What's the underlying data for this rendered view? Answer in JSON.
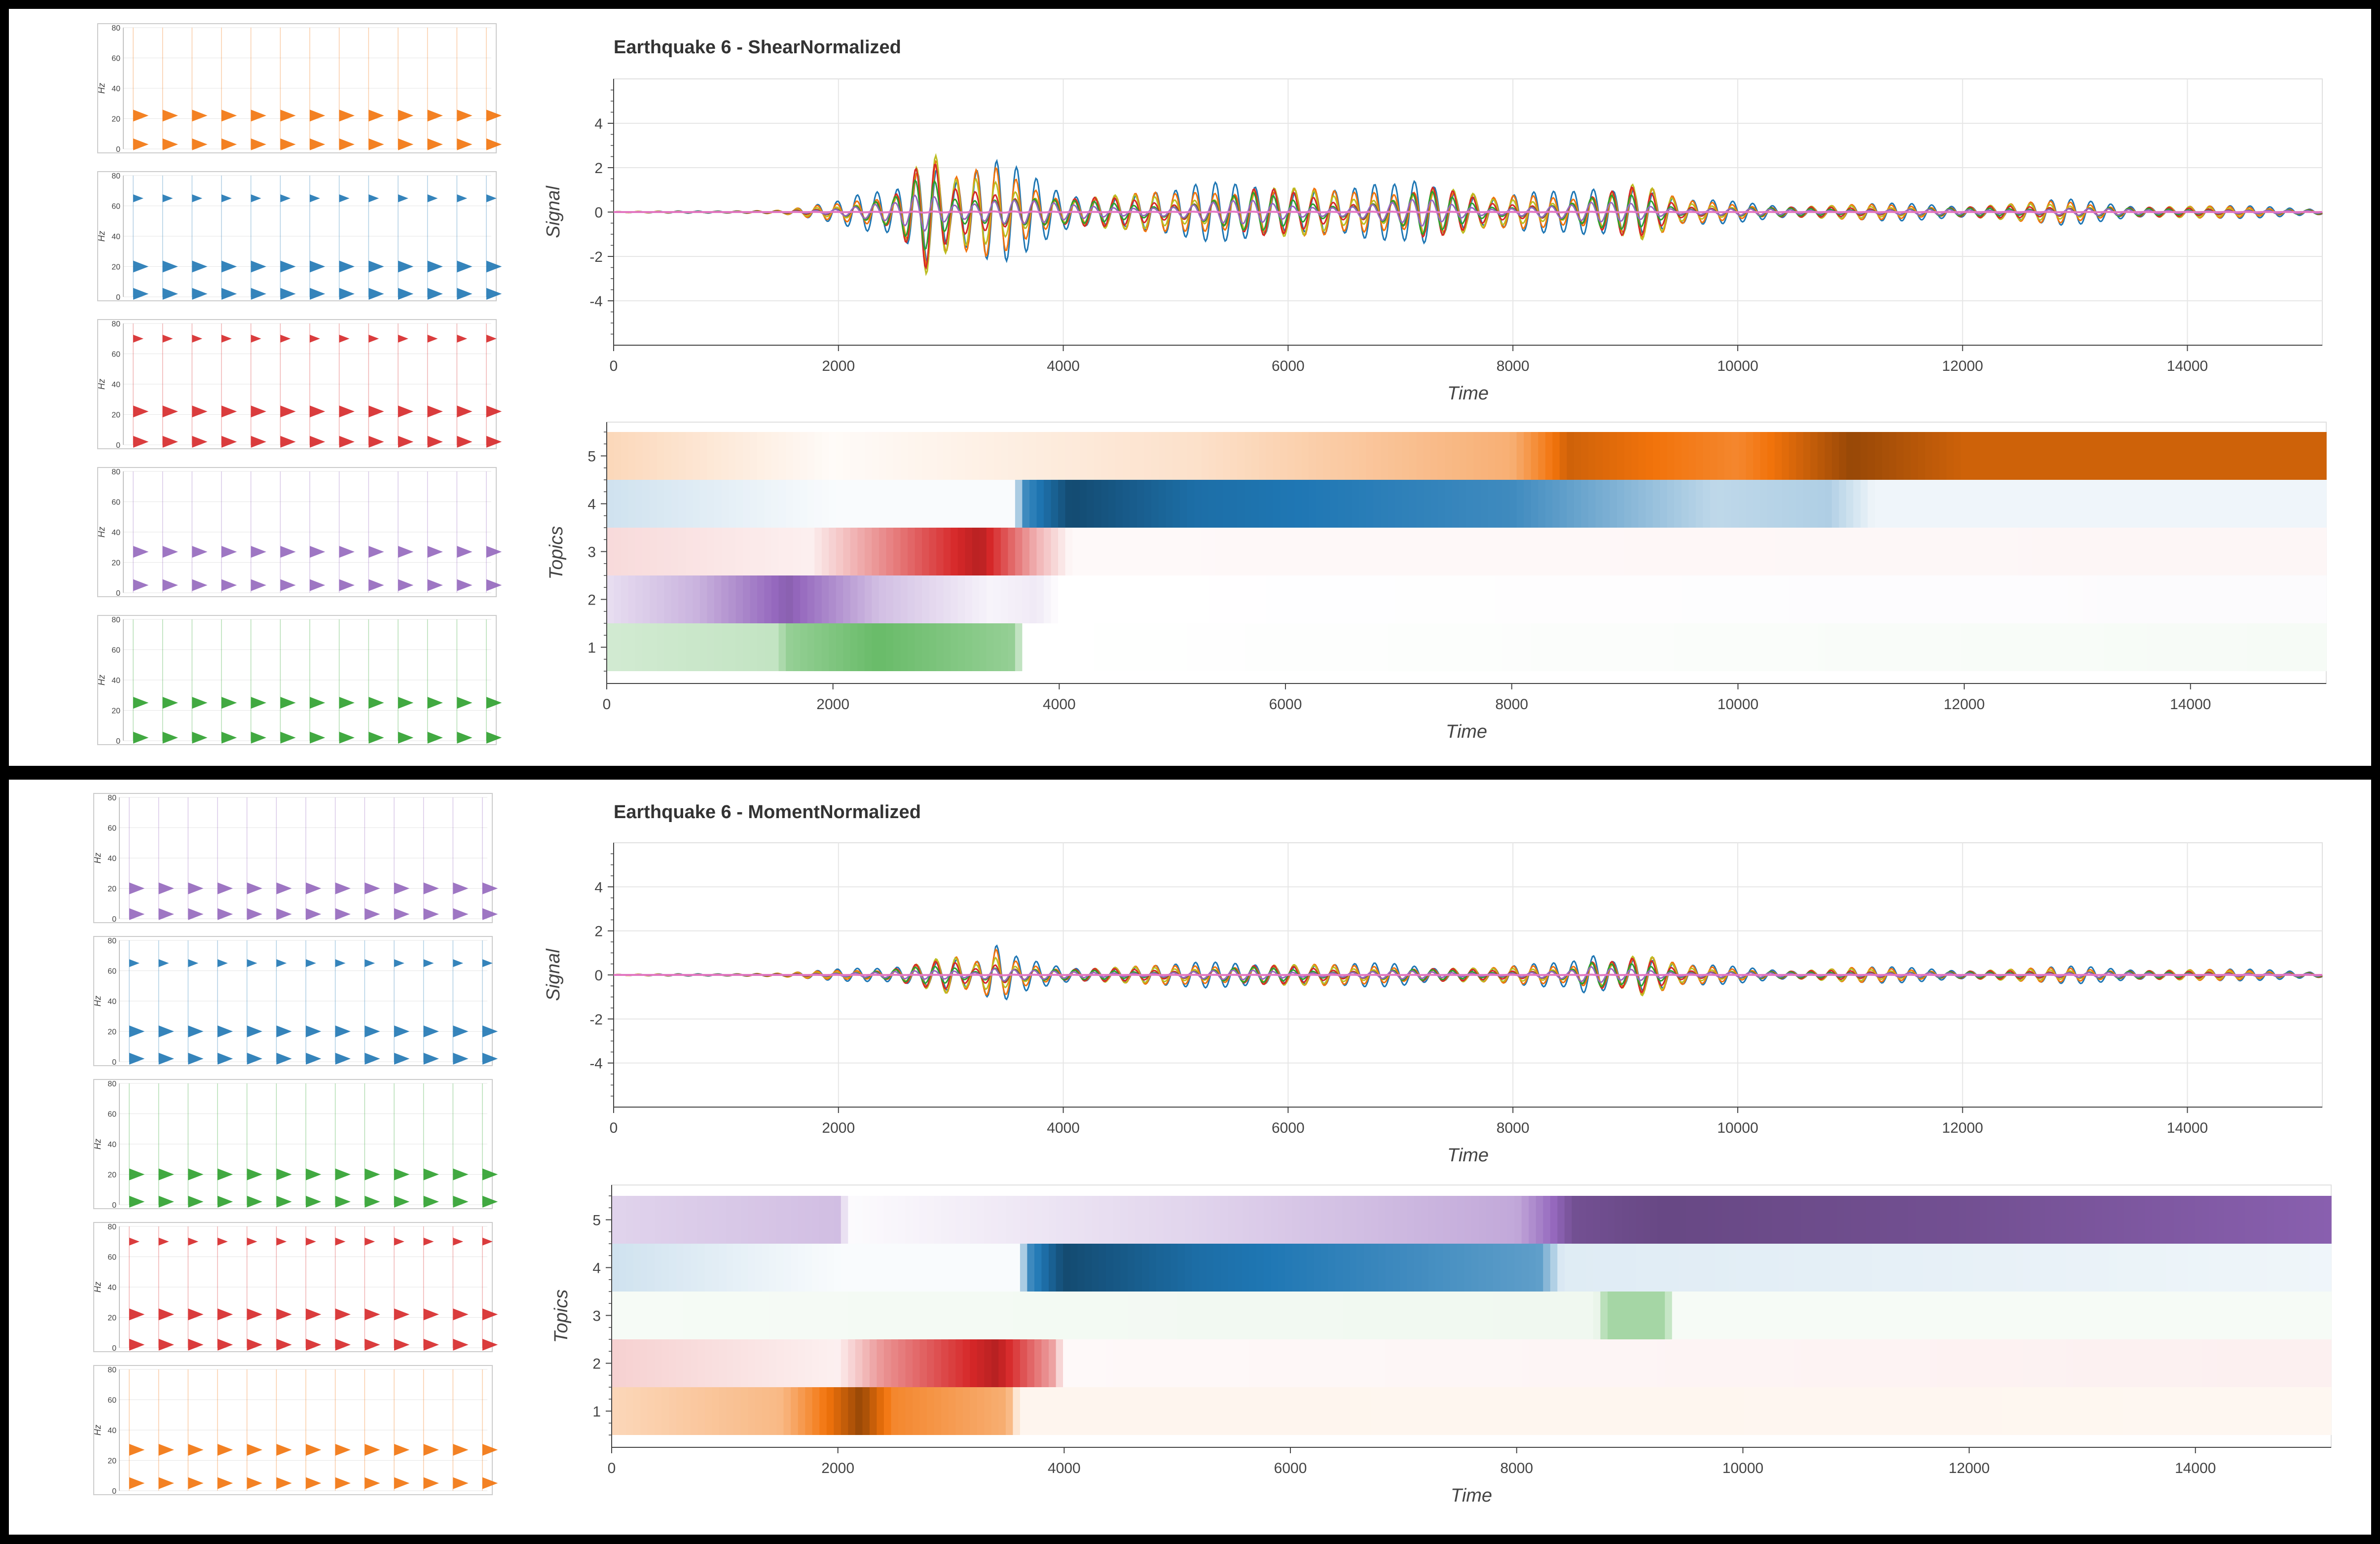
{
  "colors": {
    "orange": "#f2730b",
    "blue": "#1f77b4",
    "red": "#d62728",
    "purple": "#9467bd",
    "green": "#2ca02c",
    "pink": "#e377c2",
    "yellow": "#bcbd22",
    "grid": "#e6e6e6"
  },
  "panels": [
    {
      "title": "Earthquake 6 - ShearNormalized",
      "mini_spectra": [
        {
          "color": "orange",
          "peaks": [
            22,
            3
          ],
          "ylabel": "Hz",
          "yticks": [
            "0",
            "20",
            "40",
            "60",
            "80"
          ]
        },
        {
          "color": "blue",
          "peaks": [
            65,
            20,
            2
          ],
          "ylabel": "Hz",
          "yticks": [
            "0",
            "20",
            "40",
            "60",
            "80"
          ]
        },
        {
          "color": "red",
          "peaks": [
            70,
            22,
            2
          ],
          "ylabel": "Hz",
          "yticks": [
            "0",
            "20",
            "40",
            "60",
            "80"
          ]
        },
        {
          "color": "purple",
          "peaks": [
            27,
            5
          ],
          "ylabel": "Hz",
          "yticks": [
            "0",
            "20",
            "40",
            "60",
            "80"
          ]
        },
        {
          "color": "green",
          "peaks": [
            25,
            2
          ],
          "ylabel": "Hz",
          "yticks": [
            "0",
            "20",
            "40",
            "60",
            "80"
          ]
        }
      ],
      "topic_colors": [
        "green",
        "purple",
        "red",
        "blue",
        "orange"
      ],
      "topic_intensity": [
        [
          [
            0,
            0.15
          ],
          [
            1500,
            0.2
          ],
          [
            1600,
            0.35
          ],
          [
            2400,
            0.5
          ],
          [
            3600,
            0.35
          ],
          [
            3700,
            0
          ],
          [
            15200,
            0.03
          ]
        ],
        [
          [
            0,
            0.15
          ],
          [
            800,
            0.35
          ],
          [
            1600,
            0.75
          ],
          [
            2400,
            0.3
          ],
          [
            3400,
            0.05
          ],
          [
            3800,
            0.1
          ],
          [
            4000,
            0
          ],
          [
            15200,
            0.02
          ]
        ],
        [
          [
            0,
            0.12
          ],
          [
            1800,
            0.05
          ],
          [
            2400,
            0.35
          ],
          [
            3300,
            0.8
          ],
          [
            3800,
            0.25
          ],
          [
            4100,
            0.02
          ],
          [
            15200,
            0.03
          ]
        ],
        [
          [
            0,
            0.15
          ],
          [
            2000,
            0.02
          ],
          [
            3600,
            0.02
          ],
          [
            3700,
            0.6
          ],
          [
            4100,
            0.95
          ],
          [
            5200,
            0.75
          ],
          [
            8000,
            0.6
          ],
          [
            9800,
            0.2
          ],
          [
            10800,
            0.25
          ],
          [
            11200,
            0.05
          ],
          [
            15200,
            0.05
          ]
        ],
        [
          [
            0,
            0.2
          ],
          [
            2000,
            0.02
          ],
          [
            5200,
            0.15
          ],
          [
            8000,
            0.4
          ],
          [
            8500,
            0.8
          ],
          [
            10000,
            0.6
          ],
          [
            11000,
            0.95
          ],
          [
            12000,
            0.8
          ],
          [
            15200,
            0.8
          ]
        ]
      ]
    },
    {
      "title": "Earthquake 6 - MomentNormalized",
      "mini_spectra": [
        {
          "color": "purple",
          "peaks": [
            3,
            20
          ],
          "ylabel": "Hz",
          "yticks": [
            "0",
            "20",
            "40",
            "60",
            "80"
          ]
        },
        {
          "color": "blue",
          "peaks": [
            65,
            20,
            2
          ],
          "ylabel": "Hz",
          "yticks": [
            "0",
            "20",
            "40",
            "60",
            "80"
          ]
        },
        {
          "color": "green",
          "peaks": [
            20,
            2
          ],
          "ylabel": "Hz",
          "yticks": [
            "0",
            "20",
            "40",
            "60",
            "80"
          ]
        },
        {
          "color": "red",
          "peaks": [
            70,
            22,
            2
          ],
          "ylabel": "Hz",
          "yticks": [
            "0",
            "20",
            "40",
            "60",
            "80"
          ]
        },
        {
          "color": "orange",
          "peaks": [
            27,
            5
          ],
          "ylabel": "Hz",
          "yticks": [
            "0",
            "20",
            "40",
            "60",
            "80"
          ]
        }
      ],
      "topic_colors": [
        "orange",
        "red",
        "green",
        "blue",
        "purple"
      ],
      "topic_intensity": [
        [
          [
            0,
            0.2
          ],
          [
            1500,
            0.35
          ],
          [
            2200,
            0.95
          ],
          [
            2500,
            0.6
          ],
          [
            3500,
            0.4
          ],
          [
            3600,
            0.05
          ],
          [
            15200,
            0.04
          ]
        ],
        [
          [
            0,
            0.15
          ],
          [
            2000,
            0.05
          ],
          [
            2400,
            0.35
          ],
          [
            3400,
            0.8
          ],
          [
            3900,
            0.3
          ],
          [
            4000,
            0.02
          ],
          [
            15200,
            0.05
          ]
        ],
        [
          [
            0,
            0.03
          ],
          [
            8700,
            0.05
          ],
          [
            8800,
            0.3
          ],
          [
            9300,
            0.3
          ],
          [
            9400,
            0.03
          ],
          [
            15200,
            0.03
          ]
        ],
        [
          [
            0,
            0.15
          ],
          [
            2000,
            0.02
          ],
          [
            3600,
            0.02
          ],
          [
            3700,
            0.6
          ],
          [
            4000,
            0.95
          ],
          [
            5200,
            0.75
          ],
          [
            8200,
            0.5
          ],
          [
            8400,
            0.1
          ],
          [
            15200,
            0.05
          ]
        ],
        [
          [
            0,
            0.2
          ],
          [
            2000,
            0.3
          ],
          [
            2100,
            0.02
          ],
          [
            5200,
            0.2
          ],
          [
            8000,
            0.4
          ],
          [
            8500,
            0.85
          ],
          [
            9300,
            0.9
          ],
          [
            12000,
            0.85
          ],
          [
            15200,
            0.75
          ]
        ]
      ]
    }
  ],
  "chart_data": [
    {
      "type": "line",
      "title": "Earthquake 6 - ShearNormalized",
      "xlabel": "Time",
      "ylabel": "Signal",
      "xlim": [
        0,
        15200
      ],
      "ylim": [
        -6,
        6
      ],
      "xticks": [
        "0",
        "2000",
        "4000",
        "6000",
        "8000",
        "10000",
        "12000",
        "14000"
      ],
      "yticks": [
        "-4",
        "-2",
        "0",
        "2",
        "4"
      ],
      "envelope": [
        [
          0,
          0.02
        ],
        [
          1500,
          0.1
        ],
        [
          2000,
          0.5
        ],
        [
          2500,
          1.5
        ],
        [
          2800,
          4.6
        ],
        [
          3000,
          2.0
        ],
        [
          3400,
          2.4
        ],
        [
          4000,
          1.2
        ],
        [
          5000,
          1.0
        ],
        [
          5700,
          2.0
        ],
        [
          6500,
          1.0
        ],
        [
          7000,
          1.5
        ],
        [
          7200,
          2.3
        ],
        [
          7800,
          0.8
        ],
        [
          8500,
          1.0
        ],
        [
          8700,
          1.5
        ],
        [
          9100,
          2.0
        ],
        [
          9500,
          0.6
        ],
        [
          10500,
          0.4
        ],
        [
          12000,
          0.4
        ],
        [
          12900,
          0.6
        ],
        [
          13500,
          0.4
        ],
        [
          15200,
          0.2
        ]
      ],
      "series_colors": [
        "blue",
        "orange",
        "yellow",
        "red",
        "green",
        "purple",
        "pink"
      ],
      "grid": true
    },
    {
      "type": "heatmap",
      "title": "",
      "xlabel": "Time",
      "ylabel": "Topics",
      "xlim": [
        0,
        15200
      ],
      "xticks": [
        "0",
        "2000",
        "4000",
        "6000",
        "8000",
        "10000",
        "12000",
        "14000"
      ],
      "yticks": [
        "1",
        "2",
        "3",
        "4",
        "5"
      ]
    },
    {
      "type": "line",
      "title": "Earthquake 6 - MomentNormalized",
      "xlabel": "Time",
      "ylabel": "Signal",
      "xlim": [
        0,
        15200
      ],
      "ylim": [
        -6,
        6
      ],
      "xticks": [
        "0",
        "2000",
        "4000",
        "6000",
        "8000",
        "10000",
        "12000",
        "14000"
      ],
      "yticks": [
        "-4",
        "-2",
        "0",
        "2",
        "4"
      ],
      "envelope": [
        [
          0,
          0.02
        ],
        [
          1500,
          0.1
        ],
        [
          2400,
          0.4
        ],
        [
          2800,
          1.0
        ],
        [
          3000,
          1.2
        ],
        [
          3200,
          0.6
        ],
        [
          3400,
          1.4
        ],
        [
          3600,
          0.8
        ],
        [
          4000,
          0.5
        ],
        [
          5000,
          0.5
        ],
        [
          5700,
          0.8
        ],
        [
          6500,
          0.5
        ],
        [
          7000,
          0.6
        ],
        [
          7800,
          0.4
        ],
        [
          8500,
          0.6
        ],
        [
          8700,
          1.3
        ],
        [
          9000,
          1.0
        ],
        [
          9100,
          1.5
        ],
        [
          9500,
          0.5
        ],
        [
          10500,
          0.3
        ],
        [
          11000,
          0.4
        ],
        [
          12000,
          0.3
        ],
        [
          13000,
          0.4
        ],
        [
          15200,
          0.2
        ]
      ],
      "series_colors": [
        "blue",
        "orange",
        "yellow",
        "red",
        "green",
        "purple",
        "pink"
      ],
      "grid": true
    },
    {
      "type": "heatmap",
      "title": "",
      "xlabel": "Time",
      "ylabel": "Topics",
      "xlim": [
        0,
        15200
      ],
      "xticks": [
        "0",
        "2000",
        "4000",
        "6000",
        "8000",
        "10000",
        "12000",
        "14000"
      ],
      "yticks": [
        "1",
        "2",
        "3",
        "4",
        "5"
      ]
    }
  ]
}
